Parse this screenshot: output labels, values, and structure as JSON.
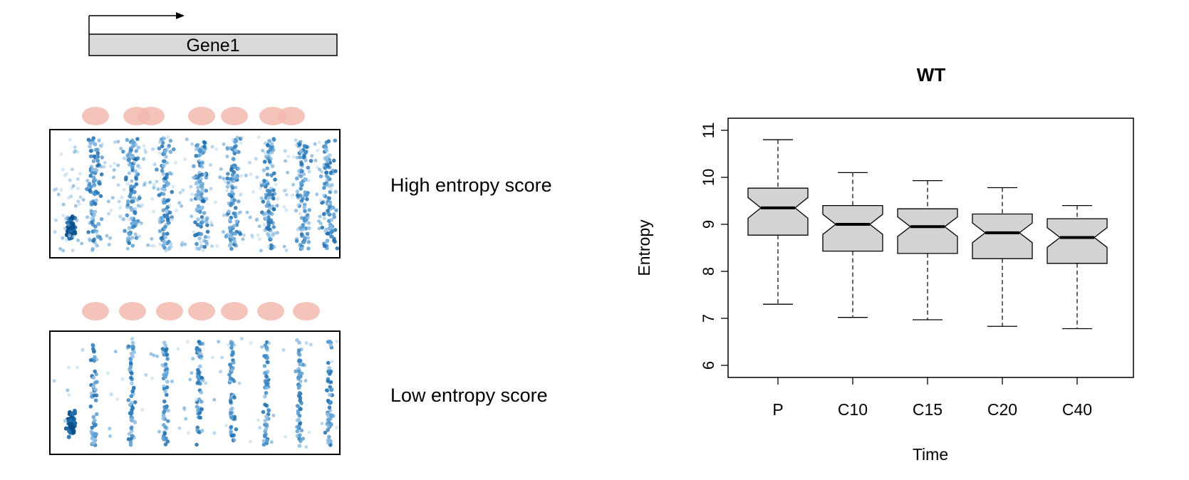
{
  "schematic": {
    "gene_label": "Gene1",
    "high_label": "High entropy score",
    "low_label": "Low entropy score",
    "nucleosome_color": "#f2b8ae",
    "dot_color_dark": "#0b4f8a",
    "dot_color_light": "#9cc6e4"
  },
  "chart_data": {
    "type": "boxplot",
    "title": "WT",
    "xlabel": "Time",
    "ylabel": "Entropy",
    "ylim": [
      6,
      11
    ],
    "yticks": [
      6,
      7,
      8,
      9,
      10,
      11
    ],
    "categories": [
      "P",
      "C10",
      "C15",
      "C20",
      "C40"
    ],
    "notched": true,
    "box_color": "#d3d3d3",
    "boxes": [
      {
        "label": "P",
        "whisker_low": 7.3,
        "q1": 8.77,
        "median": 9.35,
        "q3": 9.77,
        "whisker_high": 10.8
      },
      {
        "label": "C10",
        "whisker_low": 7.02,
        "q1": 8.43,
        "median": 9.0,
        "q3": 9.4,
        "whisker_high": 10.1
      },
      {
        "label": "C15",
        "whisker_low": 6.97,
        "q1": 8.38,
        "median": 8.95,
        "q3": 9.33,
        "whisker_high": 9.93
      },
      {
        "label": "C20",
        "whisker_low": 6.83,
        "q1": 8.27,
        "median": 8.82,
        "q3": 9.22,
        "whisker_high": 9.78
      },
      {
        "label": "C40",
        "whisker_low": 6.78,
        "q1": 8.17,
        "median": 8.72,
        "q3": 9.12,
        "whisker_high": 9.4
      }
    ]
  }
}
